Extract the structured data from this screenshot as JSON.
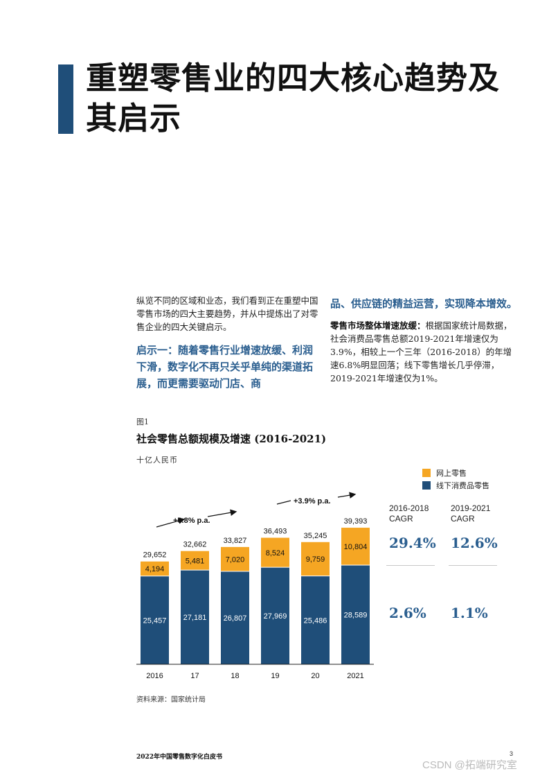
{
  "title": "重塑零售业的四大核心趋势及其启示",
  "intro": "纵览不同的区域和业态，我们看到正在重塑中国零售市场的四大主要趋势，并从中提炼出了对零售企业的四大关键启示。",
  "insight_left": "启示一：随着零售行业增速放缓、利润下滑，数字化不再只关乎单纯的渠道拓展，而更需要驱动门店、商",
  "insight_right": "品、供应链的精益运营，实现降本增效。",
  "market_para": {
    "lead": "零售市场整体增速放缓：",
    "body": "根据国家统计局数据，社会消费品零售总额2019-2021年增速仅为3.9%，相较上一个三年（2016-2018）的年增速6.8%明显回落；线下零售增长几乎停滞，2019-2021年增速仅为1%。"
  },
  "figure": {
    "label": "图1",
    "title": "社会零售总额规模及增速 (2016-2021)",
    "unit": "十亿人民币",
    "source": "资料来源：国家统计局"
  },
  "chart_data": {
    "type": "bar",
    "stacked": true,
    "categories": [
      "2016",
      "17",
      "18",
      "19",
      "20",
      "2021"
    ],
    "series": [
      {
        "name": "线下消费品零售",
        "color": "#1f4e79",
        "values": [
          25457,
          27181,
          26807,
          27969,
          25486,
          28589
        ]
      },
      {
        "name": "网上零售",
        "color": "#f5a623",
        "values": [
          4194,
          5481,
          7020,
          8524,
          9759,
          10804
        ]
      }
    ],
    "totals": [
      29652,
      32662,
      33827,
      36493,
      35245,
      39393
    ],
    "value_labels": {
      "offline": [
        "25,457",
        "27,181",
        "26,807",
        "27,969",
        "25,486",
        "28,589"
      ],
      "online": [
        "4,194",
        "5,481",
        "7,020",
        "8,524",
        "9,759",
        "10,804"
      ],
      "totals": [
        "29,652",
        "32,662",
        "33,827",
        "36,493",
        "35,245",
        "39,393"
      ]
    },
    "growth_annotations": [
      "+6.8% p.a.",
      "+3.9% p.a."
    ],
    "legend_placement": "top-right",
    "grid": false
  },
  "cagr": {
    "headers": [
      "2016-2018 CAGR",
      "2019-2021 CAGR"
    ],
    "online": [
      "29.4%",
      "12.6%"
    ],
    "offline": [
      "2.6%",
      "1.1%"
    ]
  },
  "footer": {
    "title": "2022年中国零售数字化白皮书",
    "page": "3"
  },
  "watermark": "CSDN @拓端研究室"
}
